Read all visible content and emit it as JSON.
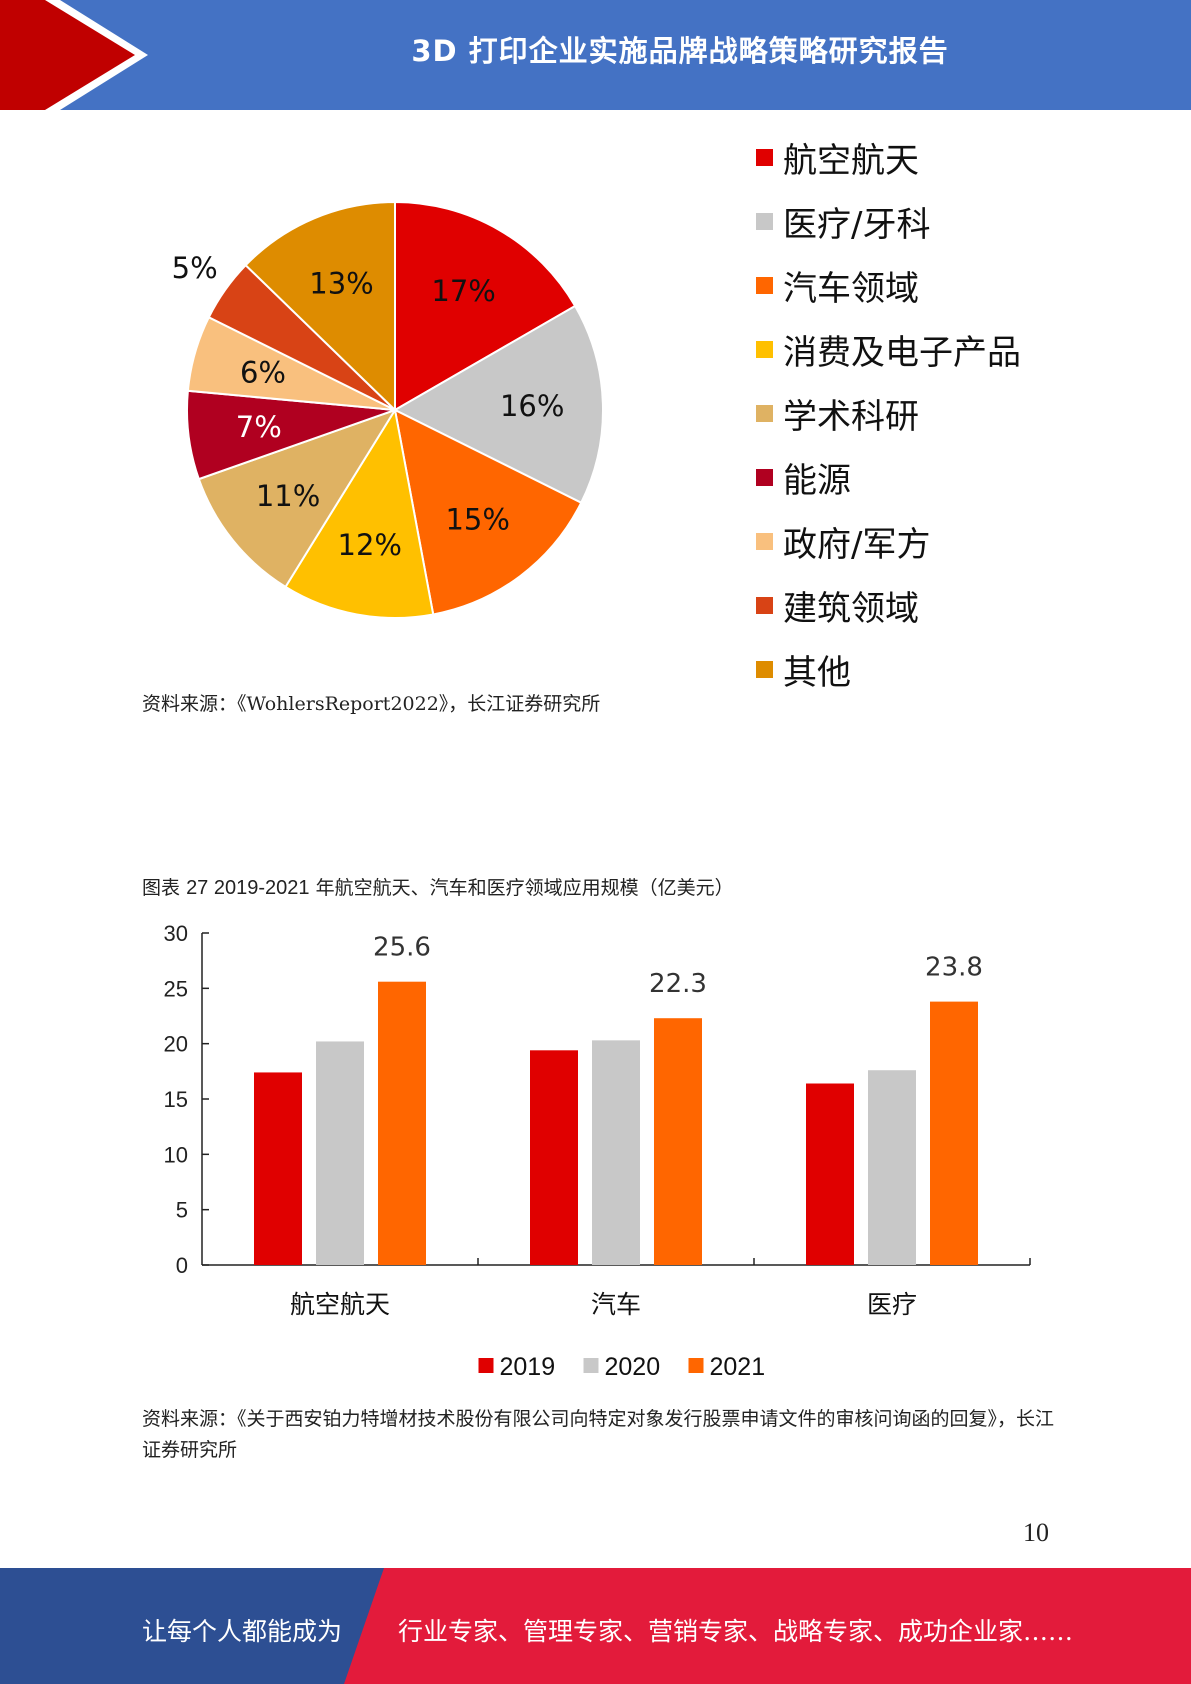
{
  "header": {
    "title": "3D 打印企业实施品牌战略策略研究报告"
  },
  "pie": {
    "chart_data": {
      "type": "pie",
      "slices": [
        {
          "label": "航空航天",
          "value": 17,
          "value_label": "17%",
          "color": "#e00000"
        },
        {
          "label": "医疗/牙科",
          "value": 16,
          "value_label": "16%",
          "color": "#c8c8c8"
        },
        {
          "label": "汽车领域",
          "value": 15,
          "value_label": "15%",
          "color": "#ff6600"
        },
        {
          "label": "消费及电子产品",
          "value": 12,
          "value_label": "12%",
          "color": "#ffc000"
        },
        {
          "label": "学术科研",
          "value": 11,
          "value_label": "11%",
          "color": "#dfb263"
        },
        {
          "label": "能源",
          "value": 7,
          "value_label": "7%",
          "color": "#b00020"
        },
        {
          "label": "政府/军方",
          "value": 6,
          "value_label": "6%",
          "color": "#f9c07e"
        },
        {
          "label": "建筑领域",
          "value": 5,
          "value_label": "5%",
          "color": "#d84315"
        },
        {
          "label": "其他",
          "value": 13,
          "value_label": "13%",
          "color": "#de8c00"
        }
      ],
      "legend": "right"
    },
    "source": "资料来源：《WohlersReport2022》，长江证券研究所"
  },
  "bar": {
    "caption_prefix": "图表",
    "caption_number": "27 2019-2021",
    "caption_text": "年航空航天、汽车和医疗领域应用规模（亿美元）",
    "chart_data": {
      "type": "bar",
      "categories": [
        "航空航天",
        "汽车",
        "医疗"
      ],
      "series": [
        {
          "name": "2019",
          "values": [
            17.4,
            19.4,
            16.4
          ],
          "color": "#e00000"
        },
        {
          "name": "2020",
          "values": [
            20.2,
            20.3,
            17.6
          ],
          "color": "#c8c8c8"
        },
        {
          "name": "2021",
          "values": [
            25.6,
            22.3,
            23.8
          ],
          "color": "#ff6600"
        }
      ],
      "data_labels": {
        "series": "2021",
        "labels": [
          "25.6",
          "22.3",
          "23.8"
        ]
      },
      "y_ticks": [
        "0",
        "5",
        "10",
        "15",
        "20",
        "25",
        "30"
      ],
      "ylim": [
        0,
        30
      ],
      "legend": "bottom"
    },
    "source": "资料来源：《关于西安铂力特增材技术股份有限公司向特定对象发行股票申请文件的审核问询函的回复》，长江证券研究所"
  },
  "page_number": "10",
  "footer": {
    "left_text": "让每个人都能成为",
    "right_text": "行业专家、管理专家、营销专家、战略专家、成功企业家……",
    "left_color": "#2d4f93",
    "right_color": "#e31b3b"
  }
}
